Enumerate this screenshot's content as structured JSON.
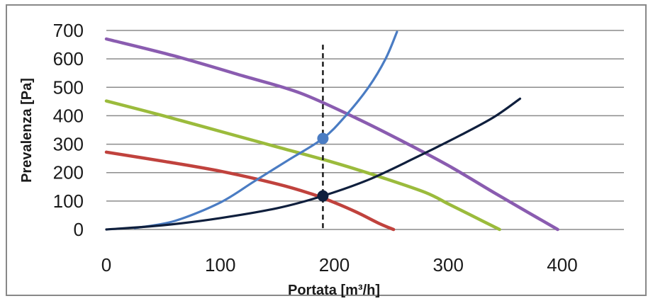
{
  "chart_data": {
    "type": "line",
    "xlabel": "Portata [m³/h]",
    "ylabel": "Prevalenza [Pa]",
    "xlim": [
      0,
      400
    ],
    "ylim": [
      0,
      700
    ],
    "x_ticks": [
      "0",
      "100",
      "200",
      "300",
      "400"
    ],
    "y_ticks": [
      "0",
      "100",
      "200",
      "300",
      "400",
      "500",
      "600",
      "700"
    ],
    "grid": "horizontal",
    "colors": {
      "purple": "#8a5cb0",
      "green": "#9bbb3c",
      "red": "#c0423d",
      "blue": "#4a7cc3",
      "navy": "#0f1f3d",
      "grid": "#8c8c8c",
      "marker_line": "#1a1a1a"
    },
    "series": [
      {
        "color": "purple",
        "points": [
          [
            0,
            670
          ],
          [
            60,
            610
          ],
          [
            120,
            540
          ],
          [
            170,
            480
          ],
          [
            220,
            390
          ],
          [
            260,
            310
          ],
          [
            300,
            225
          ],
          [
            340,
            130
          ],
          [
            370,
            60
          ],
          [
            396,
            0
          ]
        ]
      },
      {
        "color": "green",
        "points": [
          [
            0,
            452
          ],
          [
            50,
            400
          ],
          [
            100,
            345
          ],
          [
            150,
            290
          ],
          [
            200,
            235
          ],
          [
            240,
            185
          ],
          [
            280,
            130
          ],
          [
            300,
            90
          ],
          [
            320,
            50
          ],
          [
            345,
            0
          ]
        ]
      },
      {
        "color": "red",
        "points": [
          [
            0,
            272
          ],
          [
            50,
            240
          ],
          [
            100,
            205
          ],
          [
            150,
            160
          ],
          [
            180,
            125
          ],
          [
            200,
            95
          ],
          [
            220,
            60
          ],
          [
            240,
            20
          ],
          [
            252,
            0
          ]
        ]
      },
      {
        "color": "blue",
        "points": [
          [
            25,
            5
          ],
          [
            60,
            30
          ],
          [
            100,
            95
          ],
          [
            130,
            170
          ],
          [
            160,
            245
          ],
          [
            190,
            320
          ],
          [
            210,
            400
          ],
          [
            230,
            500
          ],
          [
            245,
            600
          ],
          [
            255,
            695
          ]
        ]
      },
      {
        "color": "navy",
        "points": [
          [
            0,
            0
          ],
          [
            50,
            15
          ],
          [
            100,
            40
          ],
          [
            150,
            75
          ],
          [
            190,
            118
          ],
          [
            230,
            175
          ],
          [
            270,
            250
          ],
          [
            310,
            330
          ],
          [
            340,
            395
          ],
          [
            363,
            460
          ]
        ]
      }
    ],
    "operating_points": [
      {
        "color": "blue",
        "x": 190,
        "y": 320
      },
      {
        "color": "navy",
        "x": 190,
        "y": 118
      }
    ],
    "reference_line_x": 190,
    "reference_line_top": 650
  }
}
